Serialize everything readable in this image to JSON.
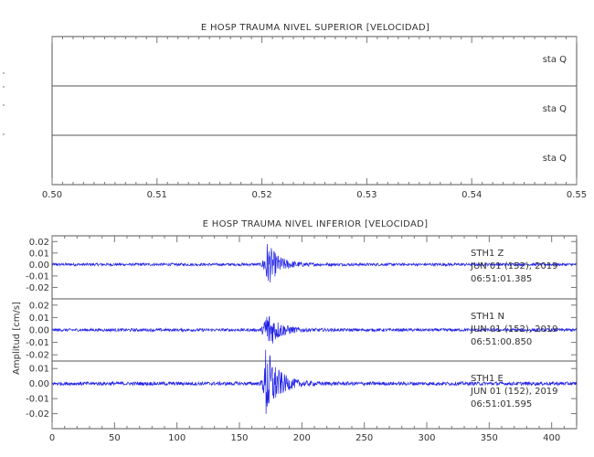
{
  "chart_data": [
    {
      "type": "line",
      "title": "E HOSP TRAUMA NIVEL SUPERIOR [VELOCIDAD]",
      "xlim": [
        0.5,
        0.55
      ],
      "x_ticks": [
        "0.50",
        "0.51",
        "0.52",
        "0.53",
        "0.54",
        "0.55"
      ],
      "traces": [
        {
          "label": "sta  Q",
          "values": []
        },
        {
          "label": "sta  Q",
          "values": []
        },
        {
          "label": "sta  Q",
          "values": []
        }
      ]
    },
    {
      "type": "line",
      "title": "E HOSP TRAUMA NIVEL INFERIOR [VELOCIDAD]",
      "ylabel": "Amplitud [cm/s]",
      "xlim": [
        0,
        420
      ],
      "x_ticks": [
        "0",
        "50",
        "100",
        "150",
        "200",
        "250",
        "300",
        "350",
        "400"
      ],
      "series_color": "#2323e6",
      "traces": [
        {
          "station": "STH1   Z",
          "date": "JUN 01 (152), 2019",
          "time": "06:51:01.385",
          "ylim": [
            -0.03,
            0.025
          ],
          "y_ticks": [
            "0.02",
            "0.01",
            "0.00",
            "-0.01",
            "-0.02"
          ],
          "noise_amplitude": 0.0012,
          "peak_time_s": 171,
          "peak_amplitude": 0.022
        },
        {
          "station": "STH1   N",
          "date": "JUN 01 (152), 2019",
          "time": "06:51:00.850",
          "ylim": [
            -0.025,
            0.025
          ],
          "y_ticks": [
            "0.02",
            "0.01",
            "0.00",
            "-0.01",
            "-0.02"
          ],
          "noise_amplitude": 0.0012,
          "peak_time_s": 171,
          "peak_amplitude": 0.019
        },
        {
          "station": "STH1   E",
          "date": "JUN 01 (152), 2019",
          "time": "06:51:01.595",
          "ylim": [
            -0.03,
            0.015
          ],
          "y_ticks": [
            "0.01",
            "0.00",
            "-0.01",
            "-0.02"
          ],
          "noise_amplitude": 0.0012,
          "peak_time_s": 171,
          "peak_amplitude": 0.027
        }
      ]
    }
  ]
}
